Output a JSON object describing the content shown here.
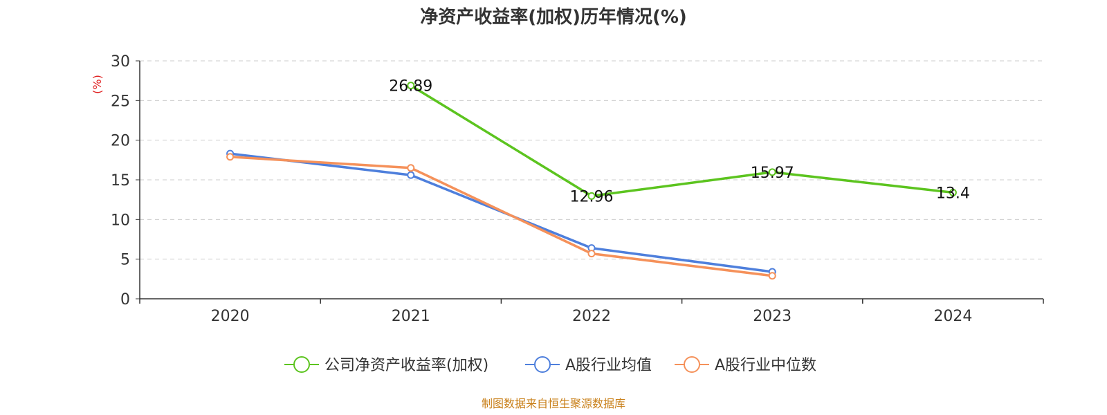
{
  "title": "净资产收益率(加权)历年情况(%)",
  "source": "制图数据来自恒生聚源数据库",
  "chart_data": {
    "type": "line",
    "title": "净资产收益率(加权)历年情况(%)",
    "ylabel": "(%)",
    "xlabel": "",
    "categories": [
      "2020",
      "2021",
      "2022",
      "2023",
      "2024"
    ],
    "ylim": [
      0,
      30
    ],
    "yticks": [
      "0",
      "5",
      "10",
      "15",
      "20",
      "25",
      "30"
    ],
    "grid": true,
    "legend_position": "bottom",
    "series": [
      {
        "name": "公司净资产收益率(加权)",
        "color": "#5cc41f",
        "values": [
          null,
          26.89,
          12.96,
          15.97,
          13.4
        ],
        "labels": [
          "",
          "26.89",
          "12.96",
          "15.97",
          "13.4"
        ]
      },
      {
        "name": "A股行业均值",
        "color": "#4e7fdc",
        "values": [
          18.3,
          15.6,
          6.4,
          3.4,
          null
        ],
        "labels": [
          "",
          "",
          "",
          "",
          ""
        ]
      },
      {
        "name": "A股行业中位数",
        "color": "#f5915a",
        "values": [
          17.9,
          16.5,
          5.7,
          2.9,
          null
        ],
        "labels": [
          "",
          "",
          "",
          "",
          ""
        ]
      }
    ]
  }
}
